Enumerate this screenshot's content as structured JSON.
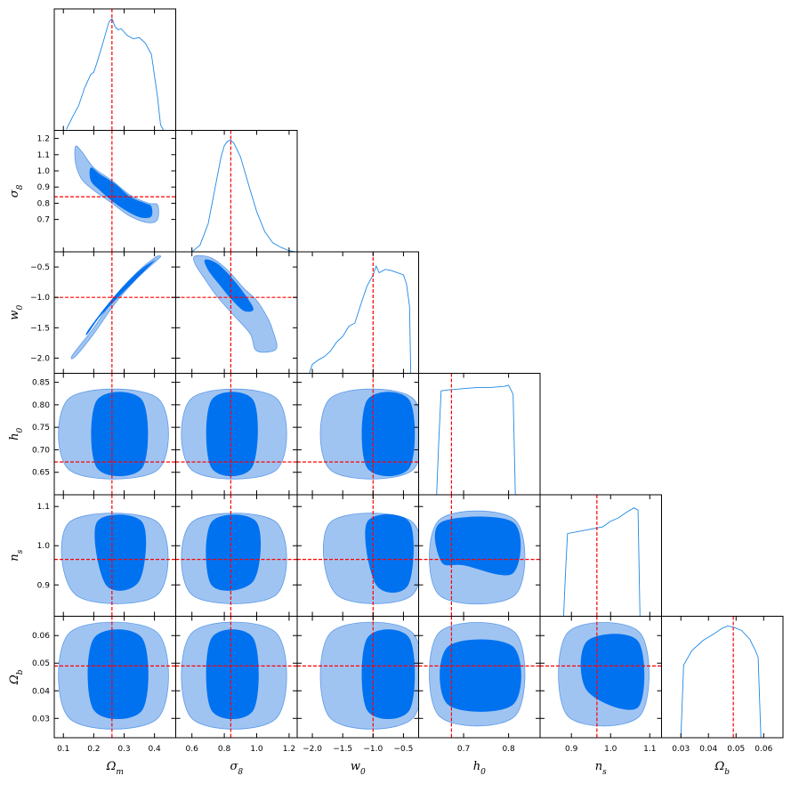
{
  "colors": {
    "dark": "#0072F0",
    "light": "#A0C4F2",
    "line": "#1E88E5",
    "truth": "#FF0000"
  },
  "params": [
    {
      "id": "Om",
      "base": "Ω",
      "sub": "m",
      "range": [
        0.07,
        0.47
      ],
      "ticks": [
        0.1,
        0.2,
        0.3,
        0.4
      ],
      "tickLabels": [
        "0.1",
        "0.2",
        "0.3",
        "0.4"
      ],
      "truth": 0.26
    },
    {
      "id": "s8",
      "base": "σ",
      "sub": "8",
      "range": [
        0.5,
        1.25
      ],
      "ticks": [
        0.7,
        0.8,
        0.9,
        1.0,
        1.1,
        1.2
      ],
      "tickLabels": [
        "0.7",
        "0.8",
        "0.9",
        "1.0",
        "1.1",
        "1.2"
      ],
      "xTicks": [
        0.6,
        0.8,
        1.0,
        1.2
      ],
      "xTickLabels": [
        "0.6",
        "0.8",
        "1.0",
        "1.2"
      ],
      "truth": 0.84
    },
    {
      "id": "w0",
      "base": "w",
      "sub": "0",
      "range": [
        -2.25,
        -0.25
      ],
      "ticks": [
        -2.0,
        -1.5,
        -1.0,
        -0.5
      ],
      "tickLabels": [
        "−2.0",
        "−1.5",
        "−1.0",
        "−0.5"
      ],
      "truth": -1.0
    },
    {
      "id": "h0",
      "base": "h",
      "sub": "0",
      "range": [
        0.6,
        0.87
      ],
      "ticks": [
        0.65,
        0.7,
        0.75,
        0.8,
        0.85
      ],
      "tickLabels": [
        "0.65",
        "0.70",
        "0.75",
        "0.80",
        "0.85"
      ],
      "xTicks": [
        0.7,
        0.8
      ],
      "xTickLabels": [
        "0.7",
        "0.8"
      ],
      "truth": 0.673
    },
    {
      "id": "ns",
      "base": "n",
      "sub": "s",
      "range": [
        0.82,
        1.13
      ],
      "ticks": [
        0.9,
        1.0,
        1.1
      ],
      "tickLabels": [
        "0.9",
        "1.0",
        "1.1"
      ],
      "truth": 0.965
    },
    {
      "id": "Ob",
      "base": "Ω",
      "sub": "b",
      "range": [
        0.023,
        0.067
      ],
      "ticks": [
        0.03,
        0.04,
        0.05,
        0.06
      ],
      "tickLabels": [
        "0.03",
        "0.04",
        "0.05",
        "0.06"
      ],
      "truth": 0.049
    }
  ],
  "chart_data": {
    "type": "corner",
    "marginals": [
      {
        "param": "Om",
        "x": [
          0.11,
          0.13,
          0.15,
          0.17,
          0.19,
          0.2,
          0.21,
          0.23,
          0.25,
          0.26,
          0.27,
          0.28,
          0.29,
          0.31,
          0.33,
          0.35,
          0.37,
          0.39,
          0.41,
          0.42,
          0.43
        ],
        "y": [
          0.01,
          0.12,
          0.22,
          0.38,
          0.5,
          0.52,
          0.6,
          0.78,
          0.97,
          1.0,
          0.93,
          0.9,
          0.91,
          0.85,
          0.82,
          0.83,
          0.78,
          0.68,
          0.3,
          0.05,
          0.0
        ]
      },
      {
        "param": "s8",
        "x": [
          0.6,
          0.65,
          0.7,
          0.74,
          0.78,
          0.8,
          0.82,
          0.84,
          0.86,
          0.9,
          0.95,
          1.0,
          1.05,
          1.1,
          1.15,
          1.2,
          1.24
        ],
        "y": [
          0.0,
          0.06,
          0.25,
          0.55,
          0.85,
          0.95,
          0.99,
          1.0,
          0.97,
          0.85,
          0.6,
          0.36,
          0.18,
          0.08,
          0.04,
          0.01,
          0.0
        ]
      },
      {
        "param": "w0",
        "x": [
          -2.25,
          -2.05,
          -2.0,
          -1.9,
          -1.8,
          -1.7,
          -1.6,
          -1.5,
          -1.4,
          -1.3,
          -1.2,
          -1.1,
          -1.0,
          -0.95,
          -0.9,
          -0.8,
          -0.7,
          -0.6,
          -0.5,
          -0.45,
          -0.4,
          -0.38,
          -0.25
        ],
        "y": [
          0.0,
          0.0,
          0.08,
          0.12,
          0.15,
          0.2,
          0.28,
          0.33,
          0.42,
          0.45,
          0.62,
          0.78,
          0.88,
          0.96,
          0.9,
          0.93,
          0.92,
          0.9,
          0.88,
          0.8,
          0.6,
          0.0,
          0.0
        ]
      },
      {
        "param": "h0",
        "x": [
          0.6,
          0.64,
          0.645,
          0.65,
          0.67,
          0.7,
          0.73,
          0.76,
          0.79,
          0.8,
          0.81,
          0.815,
          0.87
        ],
        "y": [
          0.0,
          0.0,
          0.5,
          0.93,
          0.94,
          0.95,
          0.96,
          0.96,
          0.97,
          0.98,
          0.9,
          0.0,
          0.0
        ]
      },
      {
        "param": "ns",
        "x": [
          0.82,
          0.88,
          0.885,
          0.89,
          0.92,
          0.95,
          0.98,
          1.0,
          1.02,
          1.04,
          1.06,
          1.07,
          1.075,
          1.13
        ],
        "y": [
          0.0,
          0.0,
          0.4,
          0.74,
          0.76,
          0.78,
          0.8,
          0.85,
          0.88,
          0.93,
          0.97,
          0.95,
          0.0,
          0.0
        ]
      },
      {
        "param": "Ob",
        "x": [
          0.023,
          0.03,
          0.031,
          0.034,
          0.038,
          0.042,
          0.045,
          0.047,
          0.049,
          0.052,
          0.055,
          0.057,
          0.058,
          0.059,
          0.067
        ],
        "y": [
          0.0,
          0.0,
          0.65,
          0.78,
          0.87,
          0.93,
          0.98,
          1.0,
          0.99,
          0.96,
          0.88,
          0.78,
          0.72,
          0.0,
          0.0
        ]
      }
    ],
    "joint": [
      {
        "x": "Om",
        "y": "s8",
        "c95": [
          [
            0.14,
            1.15
          ],
          [
            0.16,
            1.12
          ],
          [
            0.2,
            1.02
          ],
          [
            0.26,
            0.94
          ],
          [
            0.32,
            0.85
          ],
          [
            0.38,
            0.8
          ],
          [
            0.41,
            0.79
          ],
          [
            0.41,
            0.7
          ],
          [
            0.38,
            0.68
          ],
          [
            0.32,
            0.72
          ],
          [
            0.26,
            0.8
          ],
          [
            0.2,
            0.88
          ],
          [
            0.16,
            0.95
          ],
          [
            0.14,
            1.05
          ]
        ],
        "c68": [
          [
            0.19,
            1.02
          ],
          [
            0.22,
            0.98
          ],
          [
            0.27,
            0.92
          ],
          [
            0.32,
            0.84
          ],
          [
            0.37,
            0.8
          ],
          [
            0.39,
            0.78
          ],
          [
            0.39,
            0.72
          ],
          [
            0.36,
            0.71
          ],
          [
            0.32,
            0.74
          ],
          [
            0.27,
            0.8
          ],
          [
            0.22,
            0.88
          ],
          [
            0.19,
            0.94
          ]
        ]
      },
      {
        "x": "Om",
        "y": "w0",
        "c95": [
          [
            0.13,
            -1.95
          ],
          [
            0.2,
            -1.5
          ],
          [
            0.27,
            -1.0
          ],
          [
            0.34,
            -0.6
          ],
          [
            0.4,
            -0.35
          ],
          [
            0.42,
            -0.32
          ],
          [
            0.41,
            -0.38
          ],
          [
            0.34,
            -0.7
          ],
          [
            0.27,
            -1.1
          ],
          [
            0.2,
            -1.6
          ],
          [
            0.14,
            -1.97
          ]
        ],
        "c68": [
          [
            0.18,
            -1.55
          ],
          [
            0.24,
            -1.15
          ],
          [
            0.3,
            -0.8
          ],
          [
            0.36,
            -0.52
          ],
          [
            0.41,
            -0.36
          ],
          [
            0.4,
            -0.4
          ],
          [
            0.34,
            -0.7
          ],
          [
            0.28,
            -1.0
          ],
          [
            0.22,
            -1.32
          ],
          [
            0.18,
            -1.6
          ]
        ]
      },
      {
        "x": "s8",
        "y": "w0",
        "c95": [
          [
            0.62,
            -0.32
          ],
          [
            0.72,
            -0.35
          ],
          [
            0.82,
            -0.55
          ],
          [
            0.92,
            -0.85
          ],
          [
            1.0,
            -1.05
          ],
          [
            1.07,
            -1.35
          ],
          [
            1.1,
            -1.55
          ],
          [
            1.12,
            -1.85
          ],
          [
            1.0,
            -1.88
          ],
          [
            0.96,
            -1.6
          ],
          [
            0.86,
            -1.3
          ],
          [
            0.76,
            -1.0
          ],
          [
            0.68,
            -0.7
          ],
          [
            0.62,
            -0.45
          ]
        ],
        "c68": [
          [
            0.68,
            -0.38
          ],
          [
            0.76,
            -0.45
          ],
          [
            0.86,
            -0.72
          ],
          [
            0.94,
            -1.0
          ],
          [
            0.98,
            -1.2
          ],
          [
            0.92,
            -1.22
          ],
          [
            0.84,
            -1.02
          ],
          [
            0.76,
            -0.76
          ],
          [
            0.7,
            -0.55
          ]
        ]
      },
      {
        "x": "Om",
        "y": "h0",
        "c95": [
          [
            0.12,
            0.815
          ],
          [
            0.41,
            0.815
          ],
          [
            0.41,
            0.655
          ],
          [
            0.12,
            0.655
          ]
        ],
        "c68": [
          [
            0.21,
            0.81
          ],
          [
            0.36,
            0.81
          ],
          [
            0.36,
            0.66
          ],
          [
            0.21,
            0.66
          ]
        ]
      },
      {
        "x": "s8",
        "y": "h0",
        "c95": [
          [
            0.6,
            0.815
          ],
          [
            1.12,
            0.815
          ],
          [
            1.12,
            0.655
          ],
          [
            0.6,
            0.655
          ]
        ],
        "c68": [
          [
            0.72,
            0.81
          ],
          [
            0.98,
            0.81
          ],
          [
            0.97,
            0.66
          ],
          [
            0.72,
            0.66
          ]
        ]
      },
      {
        "x": "w0",
        "y": "h0",
        "c95": [
          [
            -1.7,
            0.815
          ],
          [
            -0.35,
            0.815
          ],
          [
            -0.35,
            0.655
          ],
          [
            -1.7,
            0.655
          ]
        ],
        "c68": [
          [
            -1.1,
            0.81
          ],
          [
            -0.4,
            0.81
          ],
          [
            -0.4,
            0.66
          ],
          [
            -1.1,
            0.66
          ]
        ]
      },
      {
        "x": "Om",
        "y": "ns",
        "c95": [
          [
            0.12,
            1.06
          ],
          [
            0.41,
            1.06
          ],
          [
            0.41,
            0.875
          ],
          [
            0.14,
            0.875
          ]
        ],
        "c68": [
          [
            0.21,
            1.06
          ],
          [
            0.36,
            1.06
          ],
          [
            0.35,
            0.91
          ],
          [
            0.24,
            0.9
          ]
        ]
      },
      {
        "x": "s8",
        "y": "ns",
        "c95": [
          [
            0.6,
            1.06
          ],
          [
            1.12,
            1.06
          ],
          [
            1.12,
            0.875
          ],
          [
            0.6,
            0.875
          ]
        ],
        "c68": [
          [
            0.72,
            1.06
          ],
          [
            1.0,
            1.06
          ],
          [
            0.98,
            0.91
          ],
          [
            0.72,
            0.9
          ]
        ]
      },
      {
        "x": "w0",
        "y": "ns",
        "c95": [
          [
            -1.7,
            1.06
          ],
          [
            -0.35,
            1.06
          ],
          [
            -0.35,
            0.875
          ],
          [
            -1.6,
            0.875
          ]
        ],
        "c68": [
          [
            -1.1,
            1.06
          ],
          [
            -0.4,
            1.06
          ],
          [
            -0.42,
            0.9
          ],
          [
            -0.95,
            0.9
          ]
        ]
      },
      {
        "x": "h0",
        "y": "ns",
        "c95": [
          [
            0.645,
            1.065
          ],
          [
            0.815,
            1.065
          ],
          [
            0.815,
            0.875
          ],
          [
            0.645,
            0.875
          ]
        ],
        "c68": [
          [
            0.65,
            1.06
          ],
          [
            0.81,
            1.06
          ],
          [
            0.81,
            0.93
          ],
          [
            0.7,
            0.95
          ],
          [
            0.65,
            0.96
          ]
        ]
      },
      {
        "x": "Om",
        "y": "Ob",
        "c95": [
          [
            0.12,
            0.061
          ],
          [
            0.41,
            0.061
          ],
          [
            0.41,
            0.03
          ],
          [
            0.12,
            0.03
          ]
        ],
        "c68": [
          [
            0.2,
            0.059
          ],
          [
            0.36,
            0.059
          ],
          [
            0.36,
            0.033
          ],
          [
            0.2,
            0.033
          ]
        ]
      },
      {
        "x": "s8",
        "y": "Ob",
        "c95": [
          [
            0.6,
            0.061
          ],
          [
            1.12,
            0.061
          ],
          [
            1.12,
            0.03
          ],
          [
            0.6,
            0.03
          ]
        ],
        "c68": [
          [
            0.72,
            0.059
          ],
          [
            0.98,
            0.059
          ],
          [
            0.98,
            0.033
          ],
          [
            0.72,
            0.033
          ]
        ]
      },
      {
        "x": "w0",
        "y": "Ob",
        "c95": [
          [
            -1.7,
            0.061
          ],
          [
            -0.35,
            0.061
          ],
          [
            -0.35,
            0.03
          ],
          [
            -1.7,
            0.03
          ]
        ],
        "c68": [
          [
            -1.1,
            0.059
          ],
          [
            -0.4,
            0.059
          ],
          [
            -0.4,
            0.033
          ],
          [
            -1.1,
            0.033
          ]
        ]
      },
      {
        "x": "h0",
        "y": "Ob",
        "c95": [
          [
            0.645,
            0.061
          ],
          [
            0.815,
            0.061
          ],
          [
            0.815,
            0.031
          ],
          [
            0.645,
            0.031
          ]
        ],
        "c68": [
          [
            0.665,
            0.056
          ],
          [
            0.81,
            0.056
          ],
          [
            0.81,
            0.035
          ],
          [
            0.665,
            0.035
          ]
        ]
      },
      {
        "x": "ns",
        "y": "Ob",
        "c95": [
          [
            0.89,
            0.061
          ],
          [
            1.075,
            0.061
          ],
          [
            1.075,
            0.031
          ],
          [
            0.89,
            0.031
          ]
        ],
        "c68": [
          [
            0.94,
            0.058
          ],
          [
            1.07,
            0.058
          ],
          [
            1.07,
            0.034
          ],
          [
            0.94,
            0.04
          ]
        ]
      }
    ]
  }
}
